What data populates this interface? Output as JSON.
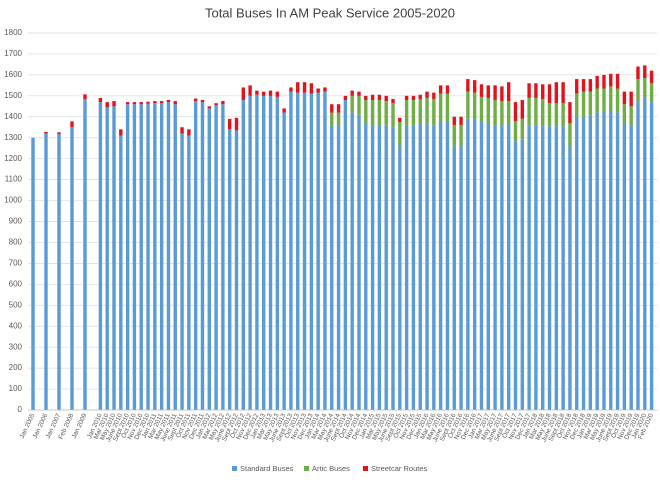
{
  "chart_data": {
    "type": "stacked_bar",
    "title": "Total Buses In AM Peak Service 2005-2020",
    "categories": [
      "Jan 2005",
      "Jan 2006",
      "Jan 2007",
      "Feb 2008",
      "Jan 2009",
      "Jan 2010",
      "Mar 2010",
      "May 2010",
      "June 2010",
      "Sept 2010",
      "Oct 2010",
      "Nov 2010",
      "Dec 2010",
      "Jan 2011",
      "Mar 2011",
      "May 2011",
      "June 2011",
      "Sept 2011",
      "Oct 2011",
      "Nov 2011",
      "Dec 2011",
      "Jan 2012",
      "Mar 2012",
      "May 2012",
      "June 2012",
      "Sept 2012",
      "Oct 2012",
      "Nov 2012",
      "Dec 2012",
      "Jan 2013",
      "Mar 2013",
      "May 2013",
      "June 2013",
      "Sept 2013",
      "Oct 2013",
      "Nov 2013",
      "Dec 2013",
      "Jan 2014",
      "Mar 2014",
      "May 2014",
      "June 2014",
      "Sept 2014",
      "Oct 2014",
      "Nov 2014",
      "Dec 2014",
      "Jan 2015",
      "Mar 2015",
      "May 2015",
      "June 2015",
      "Sept 2015",
      "Oct 2015",
      "Nov 2015",
      "Dec 2015",
      "Jan 2016",
      "Mar 2016",
      "May 2016",
      "June 2016",
      "Sept 2016",
      "Oct 2016",
      "Nov 2016",
      "Dec 2016",
      "Jan 2017",
      "Mar 2017",
      "May 2017",
      "June 2017",
      "Sept 2017",
      "Oct 2017",
      "Nov 2017",
      "Dec 2017",
      "Jan 2018",
      "Mar 2018",
      "May 2018",
      "June 2018",
      "Sept 2018",
      "Oct 2018",
      "Nov 2018",
      "Dec 2018",
      "Jan 2019",
      "Mar 2019",
      "May 2019",
      "June 2019",
      "Sept 2019",
      "Oct 2019",
      "Nov 2019",
      "Dec 2019",
      "Jan 2020",
      "Feb 2020"
    ],
    "series": [
      {
        "name": "Standard Buses",
        "color": "#5b9bd5",
        "values": [
          1300,
          1320,
          1318,
          1350,
          1485,
          1470,
          1445,
          1450,
          1310,
          1460,
          1460,
          1460,
          1462,
          1465,
          1465,
          1470,
          1460,
          1320,
          1310,
          1475,
          1470,
          1440,
          1455,
          1460,
          1340,
          1335,
          1480,
          1500,
          1505,
          1500,
          1500,
          1495,
          1420,
          1520,
          1515,
          1515,
          1510,
          1515,
          1520,
          1360,
          1360,
          1480,
          1420,
          1410,
          1370,
          1360,
          1360,
          1360,
          1350,
          1265,
          1360,
          1360,
          1365,
          1365,
          1360,
          1380,
          1380,
          1260,
          1260,
          1390,
          1385,
          1375,
          1370,
          1360,
          1355,
          1365,
          1280,
          1290,
          1360,
          1360,
          1355,
          1355,
          1355,
          1355,
          1260,
          1400,
          1400,
          1405,
          1420,
          1425,
          1430,
          1420,
          1370,
          1360,
          1470,
          1490,
          1470
        ]
      },
      {
        "name": "Artic Buses",
        "color": "#70ad47",
        "values": [
          0,
          0,
          0,
          0,
          0,
          0,
          0,
          0,
          0,
          0,
          0,
          0,
          0,
          0,
          0,
          0,
          0,
          0,
          0,
          0,
          0,
          0,
          0,
          0,
          0,
          0,
          0,
          0,
          0,
          0,
          0,
          0,
          0,
          0,
          0,
          0,
          0,
          0,
          0,
          60,
          60,
          0,
          80,
          90,
          110,
          120,
          120,
          115,
          115,
          110,
          120,
          120,
          120,
          125,
          125,
          130,
          130,
          100,
          100,
          130,
          130,
          120,
          120,
          120,
          120,
          110,
          100,
          100,
          130,
          130,
          130,
          110,
          110,
          110,
          110,
          110,
          120,
          115,
          115,
          110,
          115,
          115,
          90,
          90,
          110,
          95,
          90
        ]
      },
      {
        "name": "Streetcar Routes",
        "color": "#e0141e",
        "values": [
          0,
          8,
          8,
          28,
          22,
          20,
          25,
          25,
          30,
          10,
          10,
          10,
          10,
          10,
          10,
          10,
          15,
          30,
          30,
          12,
          10,
          10,
          10,
          15,
          50,
          60,
          60,
          50,
          20,
          20,
          25,
          25,
          20,
          20,
          50,
          50,
          50,
          20,
          20,
          40,
          40,
          20,
          25,
          20,
          20,
          25,
          25,
          25,
          20,
          20,
          20,
          20,
          20,
          30,
          30,
          40,
          40,
          40,
          40,
          60,
          60,
          60,
          60,
          70,
          70,
          90,
          90,
          90,
          70,
          70,
          70,
          90,
          100,
          100,
          100,
          70,
          60,
          60,
          60,
          65,
          60,
          70,
          60,
          70,
          60,
          60,
          60
        ]
      }
    ],
    "ylim": [
      0,
      1800
    ],
    "yticks": [
      0,
      100,
      200,
      300,
      400,
      500,
      600,
      700,
      800,
      900,
      1000,
      1100,
      1200,
      1300,
      1400,
      1500,
      1600,
      1700,
      1800
    ],
    "grid": true,
    "legend": "bottom"
  }
}
